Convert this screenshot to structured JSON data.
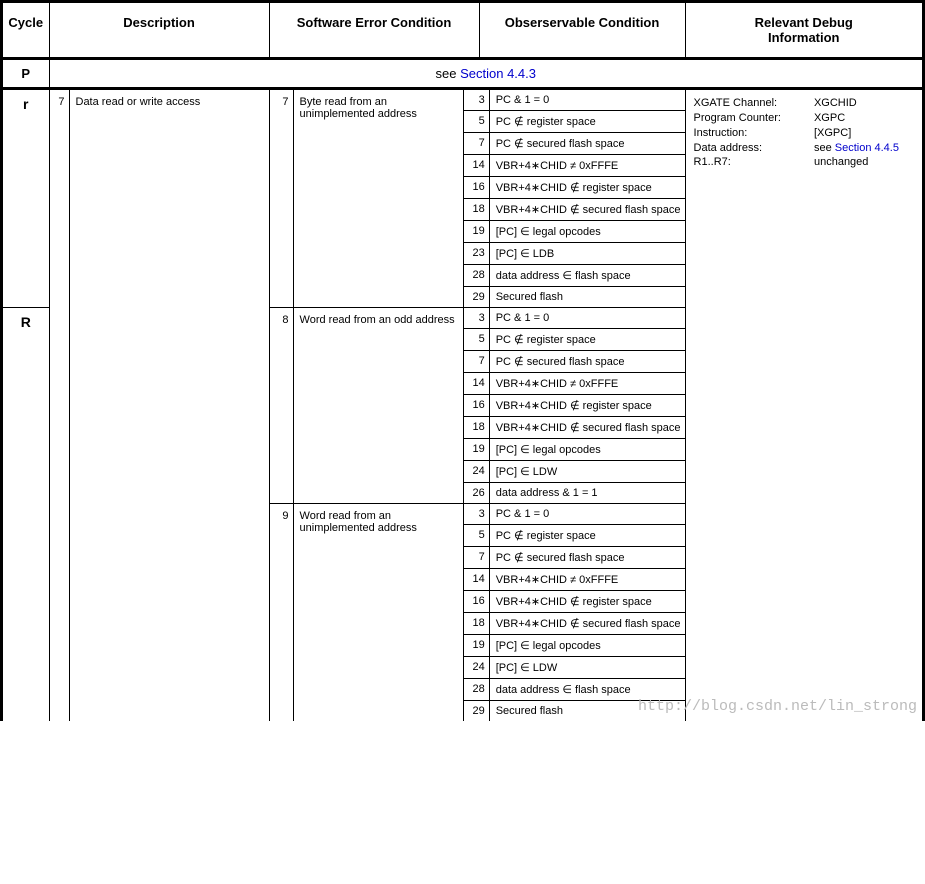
{
  "headers": {
    "cycle": "Cycle",
    "description": "Description",
    "software": "Software Error Condition",
    "observable": "Obserservable Condition",
    "debug": "Relevant Debug\nInformation"
  },
  "rowP": {
    "cycle": "P",
    "see_prefix": "see ",
    "see_link": "Section 4.4.3"
  },
  "desc": {
    "num": "7",
    "text": "Data read or write access"
  },
  "cycles": {
    "r": "r",
    "R": "R"
  },
  "sw": [
    {
      "num": "7",
      "text": "Byte read from an unimplemented address"
    },
    {
      "num": "8",
      "text": "Word read from an odd address"
    },
    {
      "num": "9",
      "text": "Word read from an unimplemented address"
    }
  ],
  "obs": [
    [
      {
        "n": "3",
        "t": "PC & 1 = 0"
      },
      {
        "n": "5",
        "t": "PC ∉ register space"
      },
      {
        "n": "7",
        "t": "PC ∉ secured flash space"
      },
      {
        "n": "14",
        "t": "VBR+4∗CHID ≠ 0xFFFE"
      },
      {
        "n": "16",
        "t": "VBR+4∗CHID ∉ register space"
      },
      {
        "n": "18",
        "t": "VBR+4∗CHID ∉ secured flash space"
      },
      {
        "n": "19",
        "t": "[PC] ∈ legal opcodes"
      },
      {
        "n": "23",
        "t": "[PC] ∈ LDB"
      },
      {
        "n": "28",
        "t": "data address ∈ flash space"
      },
      {
        "n": "29",
        "t": "Secured flash"
      }
    ],
    [
      {
        "n": "3",
        "t": "PC & 1 = 0"
      },
      {
        "n": "5",
        "t": "PC ∉ register space"
      },
      {
        "n": "7",
        "t": "PC ∉ secured flash space"
      },
      {
        "n": "14",
        "t": "VBR+4∗CHID ≠ 0xFFFE"
      },
      {
        "n": "16",
        "t": "VBR+4∗CHID ∉ register space"
      },
      {
        "n": "18",
        "t": "VBR+4∗CHID ∉ secured flash space"
      },
      {
        "n": "19",
        "t": "[PC] ∈ legal opcodes"
      },
      {
        "n": "24",
        "t": "[PC] ∈ LDW"
      },
      {
        "n": "26",
        "t": "data address & 1 = 1"
      }
    ],
    [
      {
        "n": "3",
        "t": "PC & 1 = 0"
      },
      {
        "n": "5",
        "t": "PC ∉ register space"
      },
      {
        "n": "7",
        "t": "PC ∉ secured flash space"
      },
      {
        "n": "14",
        "t": "VBR+4∗CHID ≠ 0xFFFE"
      },
      {
        "n": "16",
        "t": "VBR+4∗CHID ∉ register space"
      },
      {
        "n": "18",
        "t": "VBR+4∗CHID ∉ secured flash space"
      },
      {
        "n": "19",
        "t": "[PC] ∈ legal opcodes"
      },
      {
        "n": "24",
        "t": "[PC] ∈ LDW"
      },
      {
        "n": "28",
        "t": "data address ∈ flash space"
      },
      {
        "n": "29",
        "t": "Secured flash"
      }
    ]
  ],
  "debug": {
    "rows": [
      {
        "k": "XGATE Channel:",
        "v": "XGCHID"
      },
      {
        "k": "Program Counter:",
        "v": "XGPC"
      },
      {
        "k": "Instruction:",
        "v": "[XGPC]"
      },
      {
        "k": "Data address:",
        "v_prefix": "see ",
        "v_link": "Section 4.4.5"
      },
      {
        "k": "R1..R7:",
        "v": "unchanged"
      }
    ]
  },
  "watermark": "http://blog.csdn.net/lin_strong"
}
